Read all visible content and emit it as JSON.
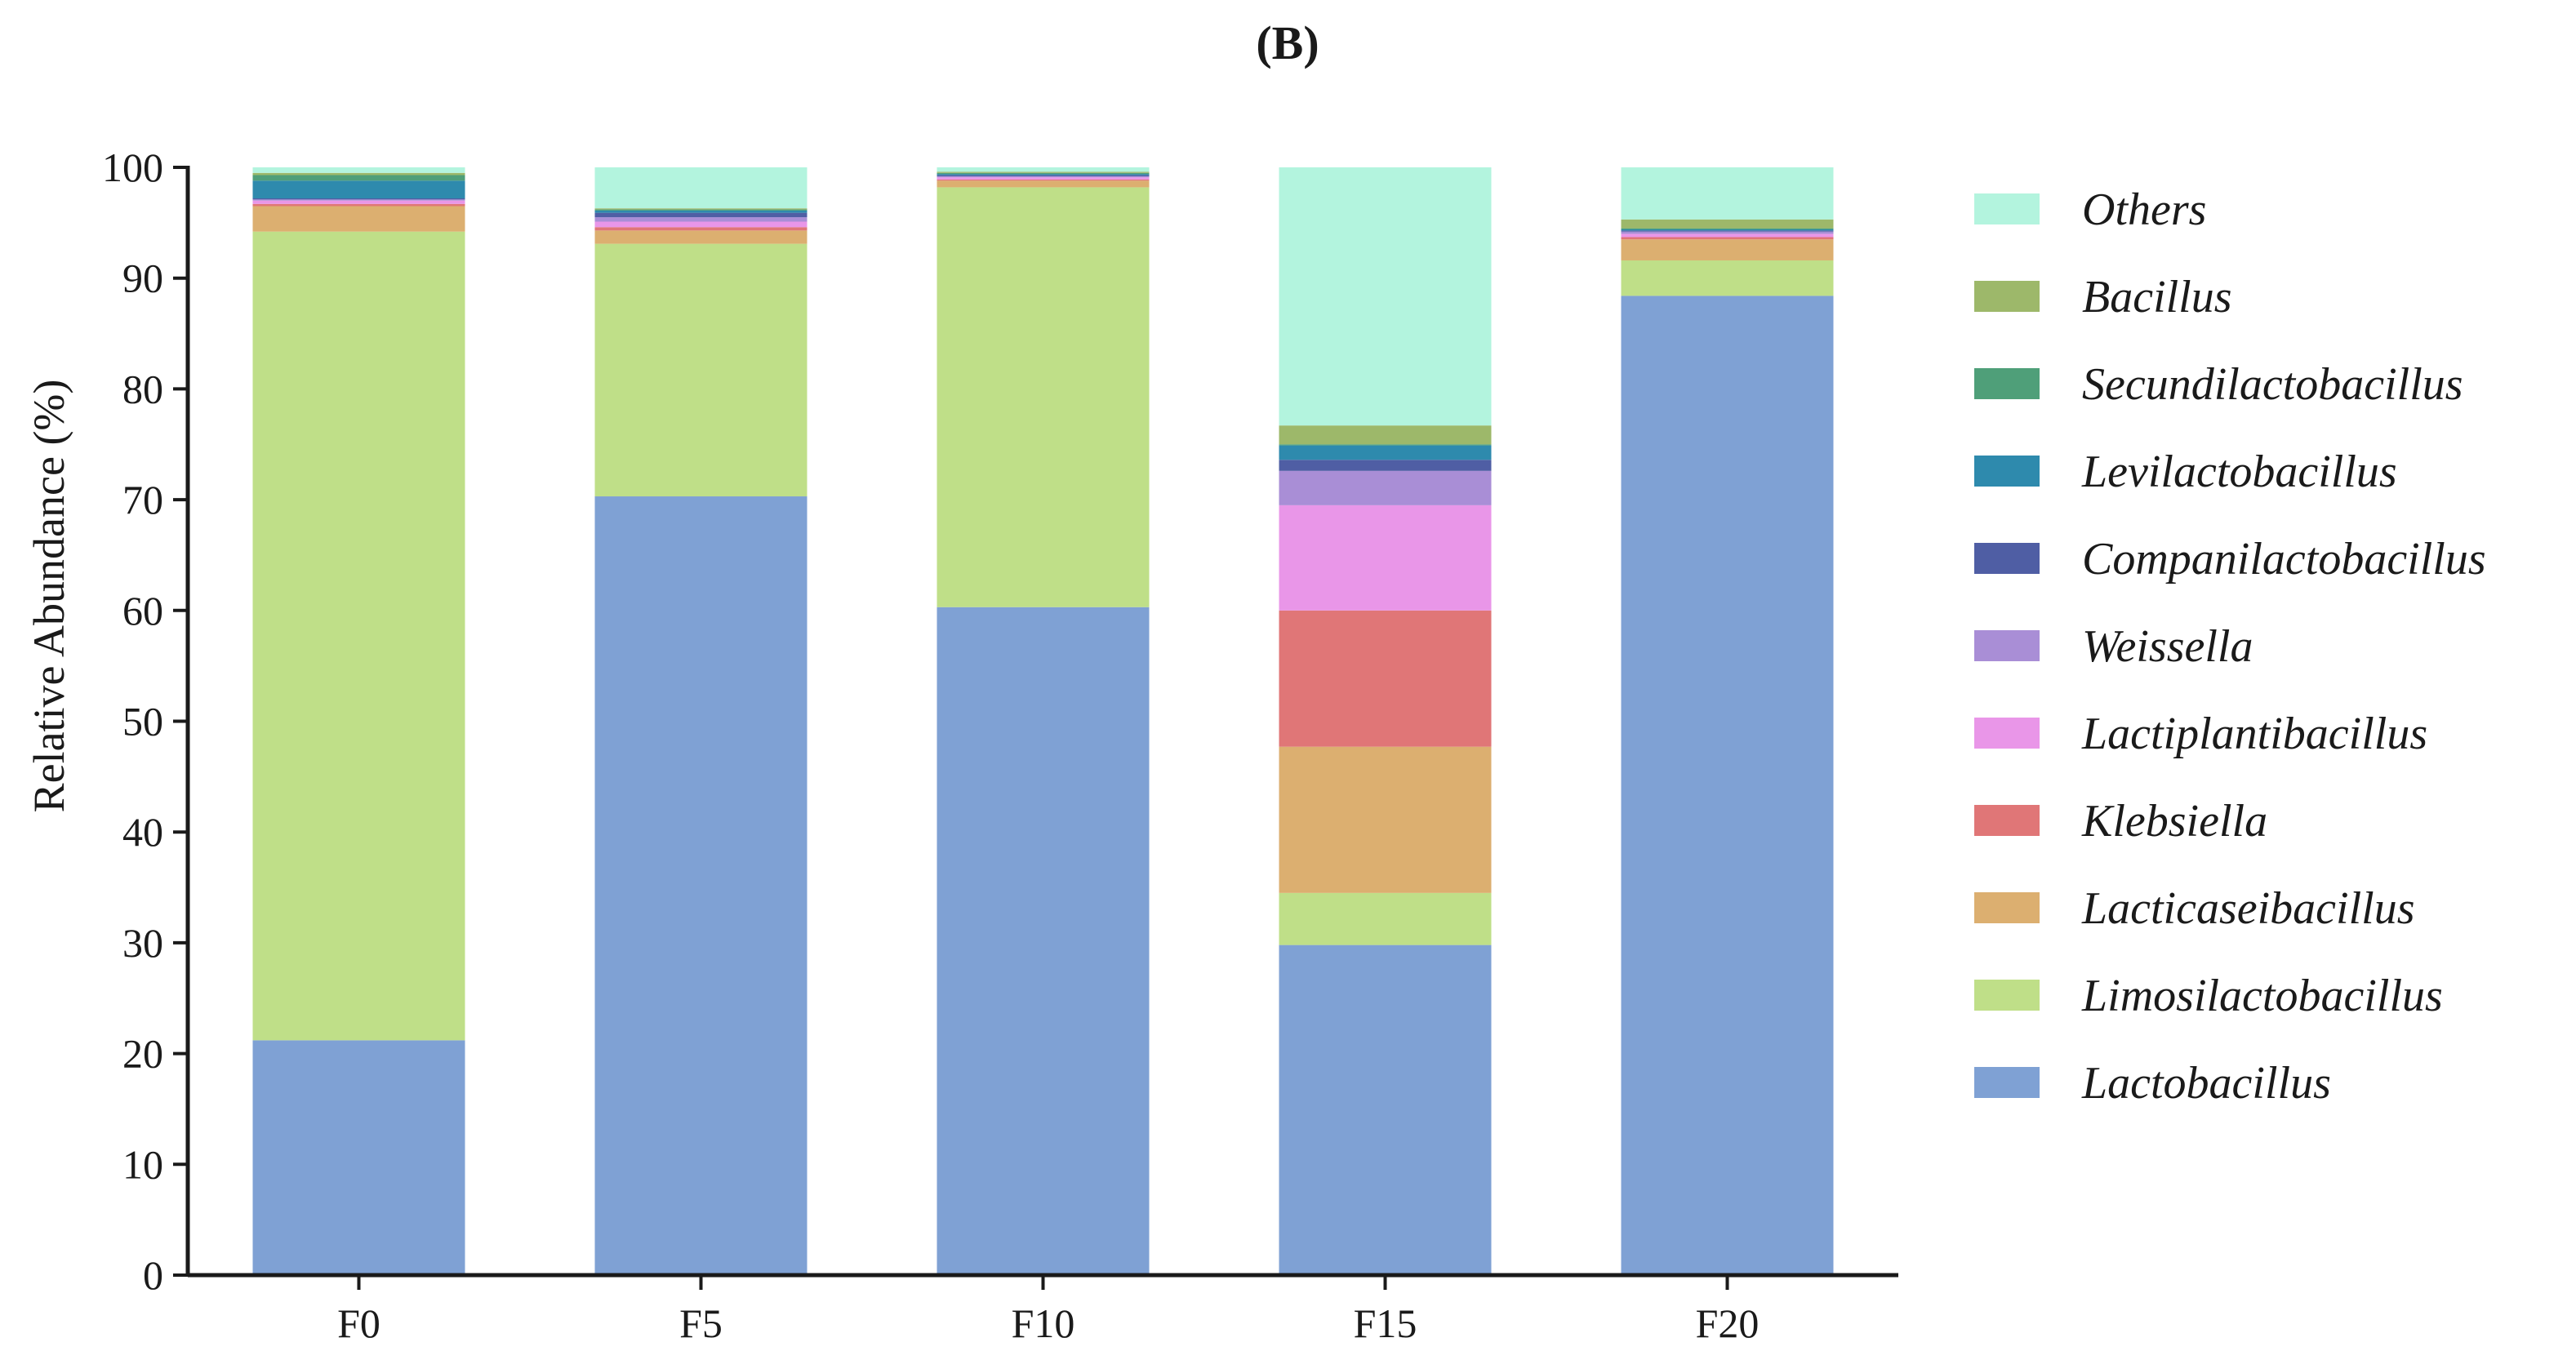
{
  "panel_label": "(B)",
  "chart_data": {
    "type": "bar",
    "stacked": true,
    "title": "",
    "xlabel": "",
    "ylabel": "Relative Abundance (%)",
    "ylim": [
      0,
      100
    ],
    "yticks": [
      0,
      10,
      20,
      30,
      40,
      50,
      60,
      70,
      80,
      90,
      100
    ],
    "grid": false,
    "legend_position": "right",
    "categories": [
      "F0",
      "F5",
      "F10",
      "F15",
      "F20"
    ],
    "series": [
      {
        "name": "Lactobacillus",
        "color": "#7fa1d4",
        "values": [
          21.2,
          70.3,
          60.3,
          29.8,
          88.4
        ]
      },
      {
        "name": "Limosilactobacillus",
        "color": "#bfdf88",
        "values": [
          73.0,
          22.8,
          37.9,
          4.7,
          3.2
        ]
      },
      {
        "name": "Lacticaseibacillus",
        "color": "#dcaf70",
        "values": [
          2.3,
          1.2,
          0.6,
          13.2,
          1.9
        ]
      },
      {
        "name": "Klebsiella",
        "color": "#e07677",
        "values": [
          0.2,
          0.3,
          0.1,
          12.3,
          0.2
        ]
      },
      {
        "name": "Lactiplantibacillus",
        "color": "#e996e8",
        "values": [
          0.3,
          0.5,
          0.2,
          9.5,
          0.3
        ]
      },
      {
        "name": "Weissella",
        "color": "#a98ed6",
        "values": [
          0.1,
          0.4,
          0.1,
          3.1,
          0.2
        ]
      },
      {
        "name": "Companilactobacillus",
        "color": "#4f5ea4",
        "values": [
          0.1,
          0.4,
          0.1,
          1.0,
          0.1
        ]
      },
      {
        "name": "Levilactobacillus",
        "color": "#2e8aad",
        "values": [
          1.6,
          0.2,
          0.1,
          1.3,
          0.1
        ]
      },
      {
        "name": "Secundilactobacillus",
        "color": "#4f9f79",
        "values": [
          0.5,
          0.1,
          0.1,
          0.1,
          0.1
        ]
      },
      {
        "name": "Bacillus",
        "color": "#9db86a",
        "values": [
          0.2,
          0.1,
          0.1,
          1.7,
          0.8
        ]
      },
      {
        "name": "Others",
        "color": "#b3f4de",
        "values": [
          0.5,
          3.7,
          0.4,
          23.3,
          4.7
        ]
      }
    ]
  }
}
